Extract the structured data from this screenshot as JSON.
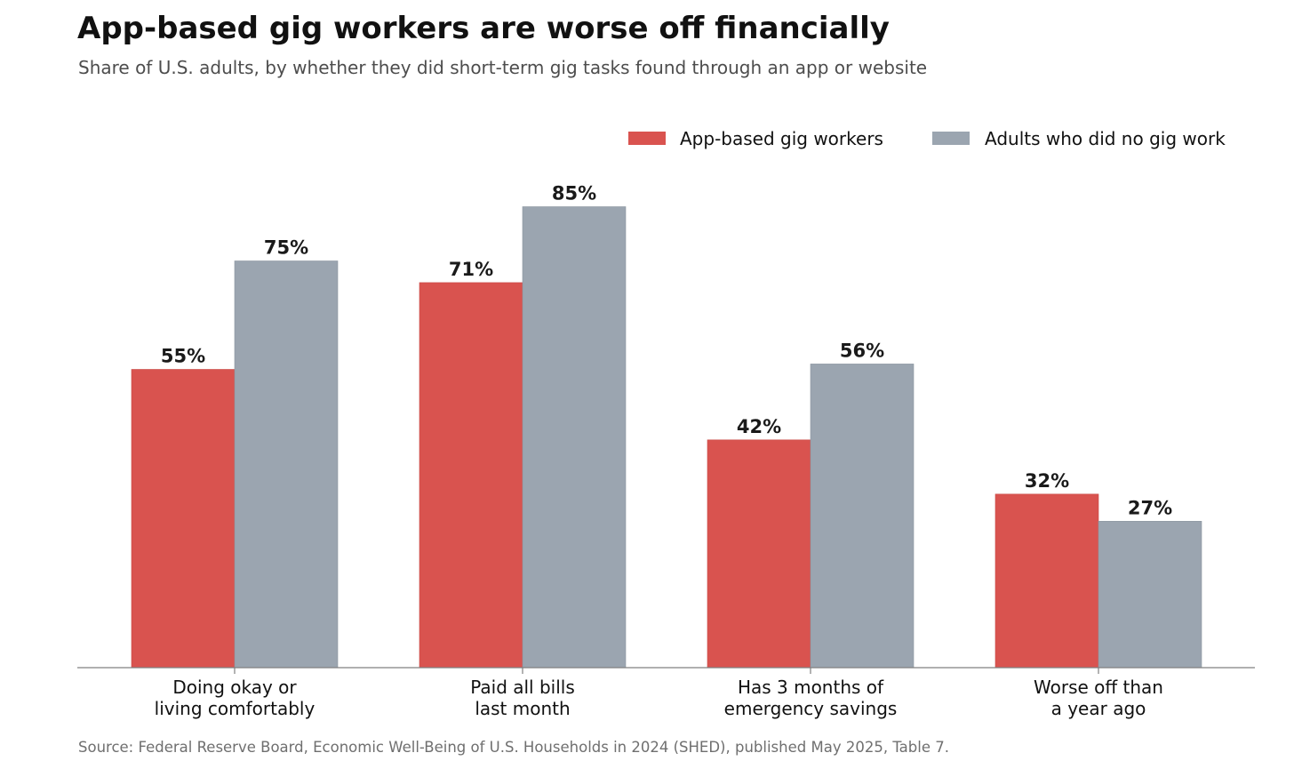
{
  "header": {
    "title": "App-based gig workers are worse off financially",
    "subtitle": "Share of U.S. adults, by whether they did short-term gig tasks found through an app or website"
  },
  "footer": {
    "source": "Source: Federal Reserve Board, Economic Well-Being of U.S. Households in 2024 (SHED), published May 2025, Table 7."
  },
  "chart_data": {
    "type": "bar",
    "title": "App-based gig workers are worse off financially",
    "subtitle": "Share of U.S. adults, by whether they did short-term gig tasks found through an app or website",
    "xlabel": "",
    "ylabel": "",
    "unit": "%",
    "ylim": [
      0,
      100
    ],
    "grid": false,
    "legend_position": "top-right",
    "categories": [
      [
        "Doing okay or",
        "living comfortably"
      ],
      [
        "Paid all bills",
        "last month"
      ],
      [
        "Has 3 months of",
        "emergency savings"
      ],
      [
        "Worse off than",
        "a year ago"
      ]
    ],
    "series": [
      {
        "name": "App-based gig workers",
        "color": "#d9534f",
        "values": [
          55,
          71,
          42,
          32
        ]
      },
      {
        "name": "Adults who did no gig work",
        "color": "#9ba5b0",
        "values": [
          75,
          85,
          56,
          27
        ]
      }
    ],
    "data_labels": [
      [
        "55%",
        "71%",
        "42%",
        "32%"
      ],
      [
        "75%",
        "85%",
        "56%",
        "27%"
      ]
    ],
    "source": "Source: Federal Reserve Board, Economic Well-Being of U.S. Households in 2024 (SHED), published May 2025, Table 7."
  }
}
